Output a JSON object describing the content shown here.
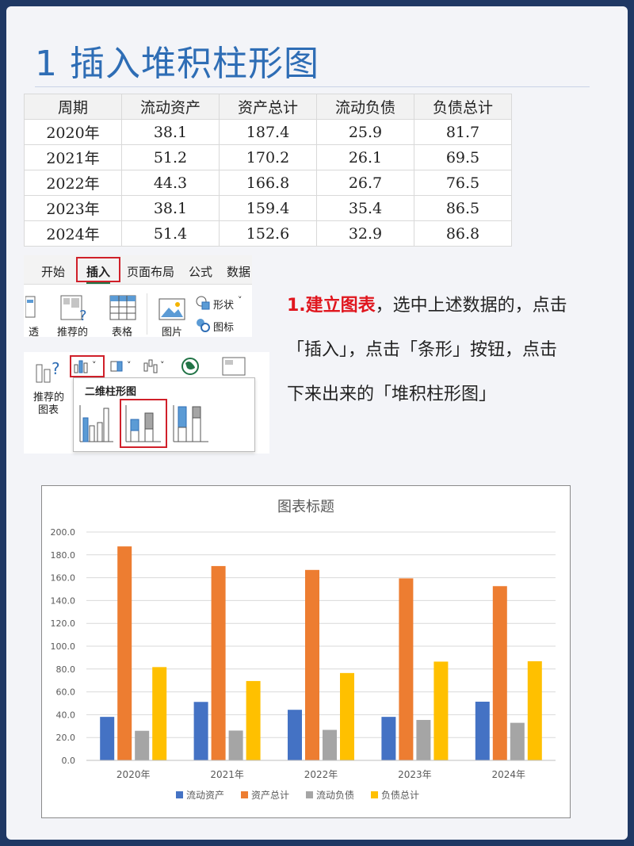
{
  "title": "1 插入堆积柱形图",
  "table": {
    "headers": [
      "周期",
      "流动资产",
      "资产总计",
      "流动负债",
      "负债总计"
    ],
    "rows": [
      [
        "2020年",
        "38.1",
        "187.4",
        "25.9",
        "81.7"
      ],
      [
        "2021年",
        "51.2",
        "170.2",
        "26.1",
        "69.5"
      ],
      [
        "2022年",
        "44.3",
        "166.8",
        "26.7",
        "76.5"
      ],
      [
        "2023年",
        "38.1",
        "159.4",
        "35.4",
        "86.5"
      ],
      [
        "2024年",
        "51.4",
        "152.6",
        "32.9",
        "86.8"
      ]
    ]
  },
  "ribbon": {
    "tabs": [
      "开始",
      "插入",
      "页面布局",
      "公式",
      "数据"
    ],
    "buttons": [
      "透",
      "推荐的",
      "表格",
      "图片",
      "形状",
      "图标"
    ],
    "shape_arrow": "˅"
  },
  "chart_panel": {
    "recommended": "推荐的",
    "recommended2": "图表",
    "dropdown_title": "二维柱形图",
    "arrow": "˅"
  },
  "instruction": {
    "highlight": "1.建立图表",
    "text1": "，选中上述数据的，点击",
    "text2": "「插入」，点击「条形」按钮，点击",
    "text3": "下来出来的「堆积柱形图」"
  },
  "colors": {
    "series": [
      "#4472c4",
      "#ed7d31",
      "#a5a5a5",
      "#ffc000"
    ],
    "title_blue": "#2e6db5",
    "highlight_red": "#e0161e"
  },
  "chart_data": {
    "type": "bar",
    "title": "图表标题",
    "categories": [
      "2020年",
      "2021年",
      "2022年",
      "2023年",
      "2024年"
    ],
    "series": [
      {
        "name": "流动资产",
        "values": [
          38.1,
          51.2,
          44.3,
          38.1,
          51.4
        ]
      },
      {
        "name": "资产总计",
        "values": [
          187.4,
          170.2,
          166.8,
          159.4,
          152.6
        ]
      },
      {
        "name": "流动负债",
        "values": [
          25.9,
          26.1,
          26.7,
          35.4,
          32.9
        ]
      },
      {
        "name": "负债总计",
        "values": [
          81.7,
          69.5,
          76.5,
          86.5,
          86.8
        ]
      }
    ],
    "ylim": [
      0,
      200
    ],
    "yticks": [
      "0.0",
      "20.0",
      "40.0",
      "60.0",
      "80.0",
      "100.0",
      "120.0",
      "140.0",
      "160.0",
      "180.0",
      "200.0"
    ],
    "grid": true,
    "legend": "bottom"
  }
}
